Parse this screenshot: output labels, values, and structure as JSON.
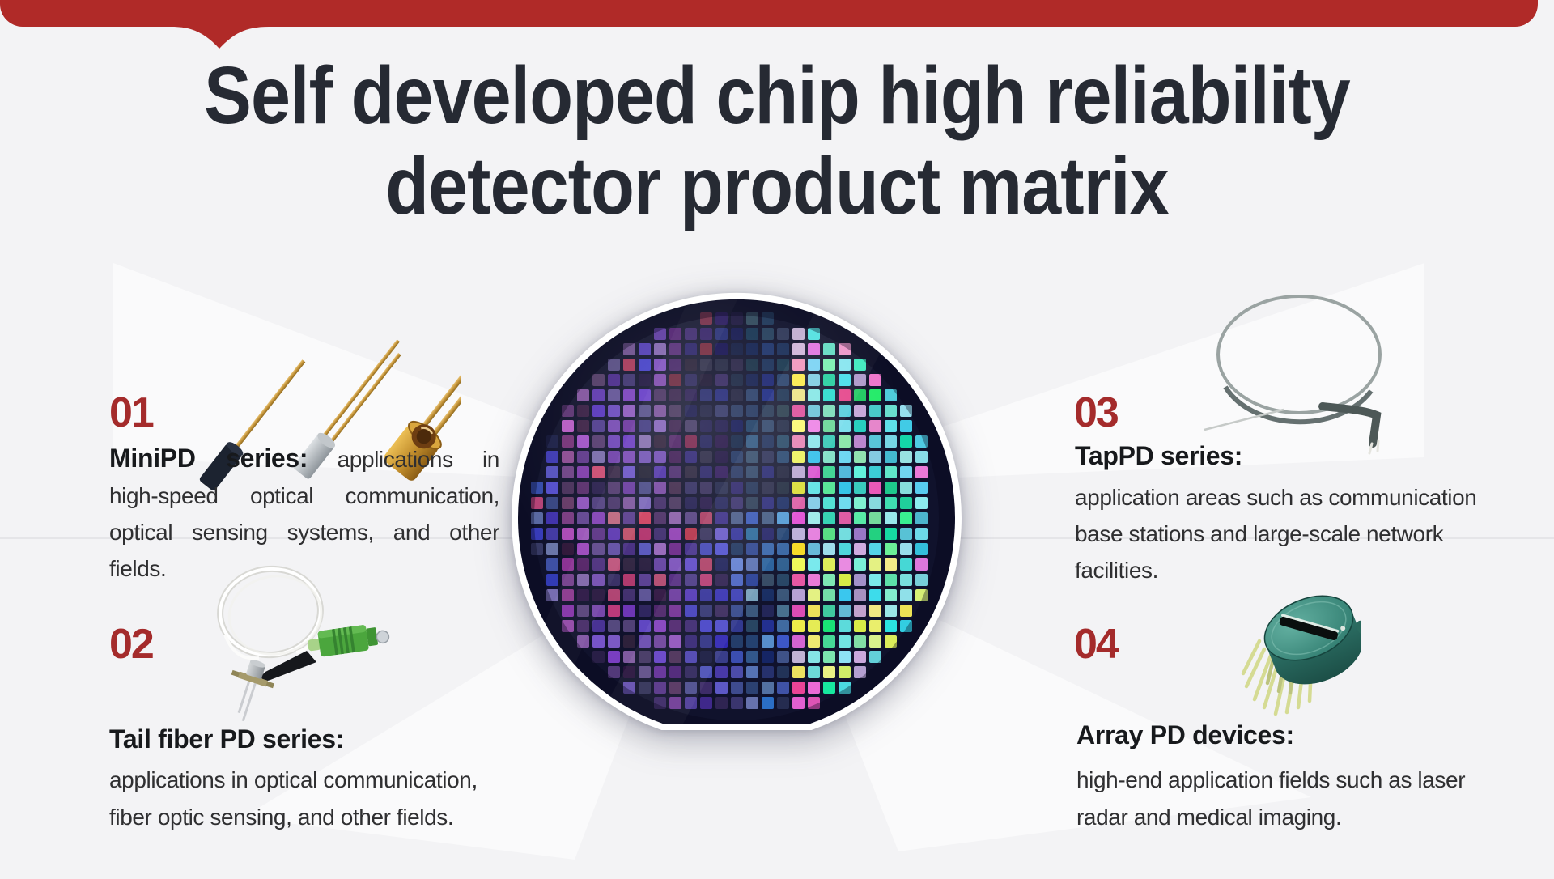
{
  "theme": {
    "background": "#f3f3f5",
    "banner_red": "#b02a28",
    "number_red": "#a42b2b",
    "title_color": "#262a33",
    "heading_color": "#17191c",
    "body_color": "#2f2f31",
    "ray_white": "#ffffff"
  },
  "title": {
    "line1": "Self developed chip high reliability",
    "line2": "detector product matrix"
  },
  "sections": [
    {
      "number": "01",
      "heading": "MiniPD series:",
      "body_lines": [
        "applications in",
        "high-speed optical communication,",
        "optical sensing systems, and other",
        "fields."
      ]
    },
    {
      "number": "02",
      "heading": "Tail fiber PD series:",
      "body_lines": [
        " applications in optical communication,",
        "fiber optic sensing, and other fields."
      ]
    },
    {
      "number": "03",
      "heading": "TapPD series:",
      "body_lines": [
        "application areas such as communication",
        " base stations and large-scale network",
        "facilities."
      ]
    },
    {
      "number": "04",
      "heading": "Array PD devices:",
      "body_lines": [
        "high-end application fields such as laser",
        "radar and medical imaging."
      ]
    }
  ],
  "images": {
    "wafer": {
      "label": "silicon wafer with grid of iridescent dies",
      "base": "#10122c",
      "ring": "#ffffff"
    },
    "minipd": {
      "label": "three TO-can mini photodiodes with long gold leads"
    },
    "pigtail": {
      "label": "tail fiber photodiode with coiled fiber and green SC/APC connector"
    },
    "tapcoil": {
      "label": "coiled tap fiber device with bent metal tip"
    },
    "arraypd": {
      "label": "teal array PD TO package with slit window and pin grid"
    }
  }
}
